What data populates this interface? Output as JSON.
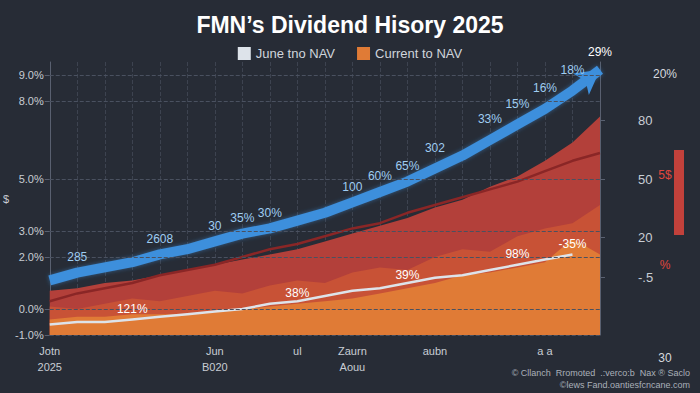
{
  "chart_data": {
    "type": "line",
    "title": "FMN’s Dividend Hisory 2025",
    "y_label": "$",
    "categories": [
      "Jotn",
      null,
      null,
      null,
      null,
      null,
      "Jun",
      null,
      null,
      "ul",
      null,
      "Zaurn",
      null,
      null,
      "aubn",
      null,
      null,
      null,
      "a a",
      null,
      null
    ],
    "sub_categories": [
      "2025",
      null,
      null,
      null,
      null,
      null,
      "B020",
      null,
      null,
      null,
      null,
      "Aouu",
      null,
      null,
      null,
      null,
      null,
      null,
      null,
      null,
      null
    ],
    "ylim": [
      -1,
      9.5
    ],
    "yticks": [
      {
        "value": -1,
        "label": "-1.0%"
      },
      {
        "value": 0,
        "label": "0.0%"
      },
      {
        "value": 2,
        "label": "2.0%"
      },
      {
        "value": 3,
        "label": "3.0%"
      },
      {
        "value": 5,
        "label": "5.0%"
      },
      {
        "value": 8,
        "label": "8.0%"
      },
      {
        "value": 9,
        "label": "9.0%"
      }
    ],
    "y2lim": [
      -30,
      110
    ],
    "y2ticks": [
      {
        "value": -0.5,
        "label": "-.5"
      },
      20,
      50,
      80
    ],
    "grid": true,
    "legend": "top",
    "series": [
      {
        "type": "area",
        "color": "#b3403a",
        "values": [
          0.7,
          0.8,
          1.0,
          1.1,
          1.3,
          1.5,
          1.7,
          1.9,
          2.1,
          2.3,
          2.6,
          2.9,
          3.2,
          3.5,
          3.9,
          4.2,
          4.7,
          5.1,
          5.7,
          6.4,
          7.4
        ]
      },
      {
        "type": "line",
        "color": "#8a2626",
        "values": [
          0.3,
          0.6,
          0.8,
          1.0,
          1.3,
          1.5,
          1.7,
          2.0,
          2.3,
          2.5,
          2.8,
          3.1,
          3.3,
          3.7,
          4.0,
          4.3,
          4.6,
          4.9,
          5.3,
          5.7,
          6.0
        ]
      },
      {
        "type": "area",
        "color": "#c85236",
        "values": [
          0.1,
          0.0,
          0.2,
          0.4,
          0.3,
          0.5,
          0.7,
          0.6,
          0.9,
          1.1,
          1.0,
          1.4,
          1.6,
          1.5,
          2.0,
          2.3,
          2.2,
          2.8,
          3.1,
          3.3,
          4.0
        ]
      },
      {
        "name": "Current to NAV",
        "type": "area",
        "color": "#e07b36",
        "values": [
          -0.4,
          -0.3,
          -0.3,
          -0.2,
          -0.2,
          -0.2,
          -0.1,
          0.0,
          0.1,
          0.2,
          0.3,
          0.4,
          0.6,
          0.8,
          1.0,
          1.3,
          1.4,
          1.6,
          1.8,
          2.7,
          2.1
        ]
      },
      {
        "name": "June tno NAV",
        "type": "line",
        "color": "#dde3ea",
        "values": [
          -0.6,
          -0.5,
          -0.5,
          -0.4,
          -0.3,
          -0.2,
          -0.1,
          0.0,
          0.2,
          0.3,
          0.5,
          0.7,
          0.8,
          1.0,
          1.2,
          1.3,
          1.5,
          1.7,
          1.9,
          2.1,
          null
        ]
      },
      {
        "type": "line",
        "color": "#3d8fdc",
        "marker": "arrow",
        "values": [
          1.1,
          1.4,
          1.6,
          1.8,
          2.1,
          2.3,
          2.6,
          2.9,
          3.1,
          3.4,
          3.7,
          4.1,
          4.5,
          4.9,
          5.4,
          5.9,
          6.5,
          7.1,
          7.7,
          8.4,
          9.2
        ]
      }
    ],
    "annotations": [
      {
        "text": "285",
        "x": 1,
        "y": 2.0,
        "color": "#9fcdf2"
      },
      {
        "text": "2608",
        "x": 4,
        "y": 2.7,
        "color": "#9fcdf2"
      },
      {
        "text": "30",
        "x": 6,
        "y": 3.2,
        "color": "#9fcdf2"
      },
      {
        "text": "35%",
        "x": 7,
        "y": 3.5,
        "color": "#9fcdf2"
      },
      {
        "text": "30%",
        "x": 8,
        "y": 3.7,
        "color": "#9fcdf2"
      },
      {
        "text": "100",
        "x": 11,
        "y": 4.7,
        "color": "#9fcdf2"
      },
      {
        "text": "60%",
        "x": 12,
        "y": 5.1,
        "color": "#9fcdf2"
      },
      {
        "text": "65%",
        "x": 13,
        "y": 5.5,
        "color": "#9fcdf2"
      },
      {
        "text": "302",
        "x": 14,
        "y": 6.2,
        "color": "#9fcdf2"
      },
      {
        "text": "33%",
        "x": 16,
        "y": 7.3,
        "color": "#9fcdf2"
      },
      {
        "text": "15%",
        "x": 17,
        "y": 7.9,
        "color": "#9fcdf2"
      },
      {
        "text": "16%",
        "x": 18,
        "y": 8.5,
        "color": "#9fcdf2"
      },
      {
        "text": "18%",
        "x": 19,
        "y": 9.2,
        "color": "#9fcdf2"
      },
      {
        "text": "29%",
        "x": 20,
        "y": 9.9,
        "color": "#ffffff"
      },
      {
        "text": "121%",
        "x": 3,
        "y": 0.0,
        "color": "#ffffff"
      },
      {
        "text": "38%",
        "x": 9,
        "y": 0.6,
        "color": "#ffffff"
      },
      {
        "text": "39%",
        "x": 13,
        "y": 1.3,
        "color": "#ffffff"
      },
      {
        "text": "98%",
        "x": 17,
        "y": 2.1,
        "color": "#ffffff"
      },
      {
        "text": "-35%",
        "x": 19,
        "y": 2.5,
        "color": "#ffffff"
      },
      {
        "text": "20%",
        "axis": "y2",
        "y": 104,
        "color": "#d5d9df"
      },
      {
        "text": "5$",
        "axis": "y2",
        "y": 52,
        "color": "#e0463d"
      },
      {
        "text": "%",
        "axis": "y2",
        "y": 6,
        "color": "#e0463d"
      },
      {
        "text": "30",
        "axis": "y2",
        "y": -42,
        "color": "#d5d9df"
      }
    ],
    "footer": [
      "© Cllanch  Rromoted  .:verco:b  Nax ® Saclo",
      "©lews Fand.oantiesfcncane.com"
    ]
  }
}
